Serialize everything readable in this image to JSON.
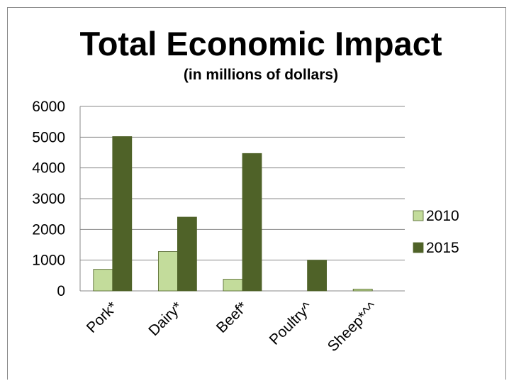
{
  "chart_data": {
    "type": "bar",
    "title": "Total Economic Impact",
    "subtitle": "(in millions of dollars)",
    "xlabel": "",
    "ylabel": "",
    "categories": [
      "Pork*",
      "Dairy*",
      "Beef*",
      "Poultry^",
      "Sheep*^^"
    ],
    "series": [
      {
        "name": "2010",
        "values": [
          700,
          1280,
          380,
          0,
          60
        ],
        "color": "#c3dc9b"
      },
      {
        "name": "2015",
        "values": [
          5020,
          2400,
          4470,
          1000,
          0
        ],
        "color": "#4f6228"
      }
    ],
    "ylim": [
      0,
      6000
    ],
    "yticks": [
      0,
      1000,
      2000,
      3000,
      4000,
      5000,
      6000
    ],
    "grid": true,
    "legend": "right"
  }
}
